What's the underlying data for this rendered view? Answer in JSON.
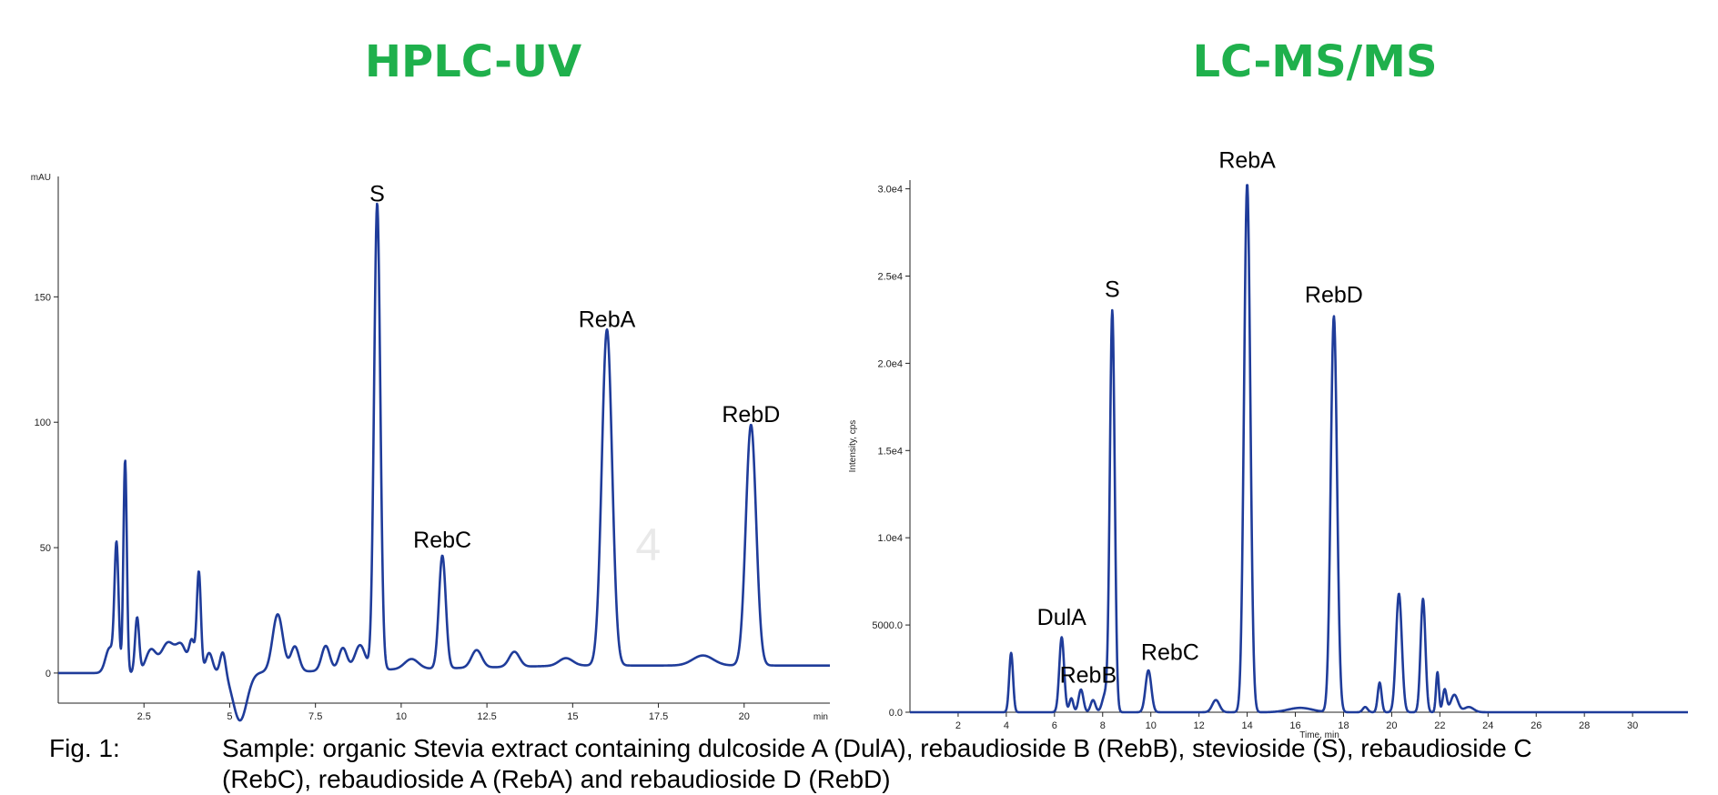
{
  "panels": {
    "left_title": "HPLC-UV",
    "right_title": "LC-MS/MS"
  },
  "caption": {
    "label": "Fig. 1:",
    "line1": "Sample: organic Stevia extract containing  dulcoside A (DulA), rebaudioside B (RebB), stevioside (S), rebaudioside C",
    "line2": "(RebC), rebaudioside A (RebA) and rebaudioside D (RebD)"
  },
  "chart_data": [
    {
      "type": "line",
      "title": "HPLC-UV",
      "ylabel": "mAU",
      "xlabel": "min",
      "xlim": [
        0,
        22.5
      ],
      "ylim": [
        -12,
        198
      ],
      "x_ticks": [
        2.5,
        5,
        7.5,
        10,
        12.5,
        15,
        17.5,
        20
      ],
      "x_tick_labels": [
        "2.5",
        "5",
        "7.5",
        "10",
        "12.5",
        "15",
        "17.5",
        "20"
      ],
      "y_ticks": [
        0,
        50,
        100,
        150
      ],
      "y_tick_labels": [
        "0",
        "50",
        "100",
        "150"
      ],
      "baseline": 0,
      "baseline_end": 3,
      "color": "#1f3c9a",
      "peaks": [
        {
          "x": 1.5,
          "h": 10,
          "w": 0.12
        },
        {
          "x": 1.7,
          "h": 50,
          "w": 0.06
        },
        {
          "x": 1.95,
          "h": 85,
          "w": 0.05
        },
        {
          "x": 2.3,
          "h": 22,
          "w": 0.06
        },
        {
          "x": 2.7,
          "h": 9,
          "w": 0.15
        },
        {
          "x": 3.2,
          "h": 12,
          "w": 0.2
        },
        {
          "x": 3.6,
          "h": 10,
          "w": 0.15
        },
        {
          "x": 3.9,
          "h": 12,
          "w": 0.08
        },
        {
          "x": 4.1,
          "h": 40,
          "w": 0.06
        },
        {
          "x": 4.4,
          "h": 8,
          "w": 0.1
        },
        {
          "x": 4.8,
          "h": 9,
          "w": 0.08
        },
        {
          "x": 5.3,
          "h": -19,
          "w": 0.2
        },
        {
          "x": 6.4,
          "h": 23,
          "w": 0.15
        },
        {
          "x": 6.9,
          "h": 10,
          "w": 0.12
        },
        {
          "x": 7.8,
          "h": 10,
          "w": 0.12
        },
        {
          "x": 8.3,
          "h": 9,
          "w": 0.12
        },
        {
          "x": 8.8,
          "h": 10,
          "w": 0.15
        },
        {
          "x": 9.3,
          "h": 186,
          "w": 0.09
        },
        {
          "x": 10.3,
          "h": 4,
          "w": 0.2
        },
        {
          "x": 11.2,
          "h": 45,
          "w": 0.1
        },
        {
          "x": 12.2,
          "h": 7,
          "w": 0.15
        },
        {
          "x": 13.3,
          "h": 6,
          "w": 0.15
        },
        {
          "x": 14.8,
          "h": 3,
          "w": 0.2
        },
        {
          "x": 16.0,
          "h": 134,
          "w": 0.15
        },
        {
          "x": 18.8,
          "h": 4,
          "w": 0.3
        },
        {
          "x": 20.2,
          "h": 96,
          "w": 0.15
        }
      ],
      "annotations": [
        {
          "label": "S",
          "x": 9.3,
          "y": 188
        },
        {
          "label": "RebC",
          "x": 11.2,
          "y": 50
        },
        {
          "label": "RebA",
          "x": 16.0,
          "y": 138
        },
        {
          "label": "RebD",
          "x": 20.2,
          "y": 100
        }
      ],
      "watermark": "4"
    },
    {
      "type": "line",
      "title": "LC-MS/MS",
      "ylabel": "Intensity, cps",
      "xlabel": "Time, min",
      "xlim": [
        0,
        32.3
      ],
      "ylim": [
        0,
        30500
      ],
      "x_ticks": [
        2,
        4,
        6,
        8,
        10,
        12,
        14,
        16,
        18,
        20,
        22,
        24,
        26,
        28,
        30
      ],
      "x_tick_labels": [
        "2",
        "4",
        "6",
        "8",
        "10",
        "12",
        "14",
        "16",
        "18",
        "20",
        "22",
        "24",
        "26",
        "28",
        "30"
      ],
      "y_ticks": [
        0,
        5000,
        10000,
        15000,
        20000,
        25000,
        30000
      ],
      "y_tick_labels": [
        "0.0",
        "5000.0",
        "1.0e4",
        "1.5e4",
        "2.0e4",
        "2.5e4",
        "3.0e4"
      ],
      "baseline": 0,
      "baseline_end": 0,
      "color": "#1f3c9a",
      "peaks": [
        {
          "x": 4.2,
          "h": 3400,
          "w": 0.08
        },
        {
          "x": 6.3,
          "h": 4300,
          "w": 0.1
        },
        {
          "x": 6.7,
          "h": 800,
          "w": 0.08
        },
        {
          "x": 7.1,
          "h": 1300,
          "w": 0.1
        },
        {
          "x": 7.6,
          "h": 700,
          "w": 0.1
        },
        {
          "x": 8.1,
          "h": 1000,
          "w": 0.12
        },
        {
          "x": 8.4,
          "h": 23000,
          "w": 0.1
        },
        {
          "x": 9.9,
          "h": 2400,
          "w": 0.12
        },
        {
          "x": 12.7,
          "h": 700,
          "w": 0.15
        },
        {
          "x": 14.0,
          "h": 30300,
          "w": 0.13
        },
        {
          "x": 16.2,
          "h": 250,
          "w": 0.5
        },
        {
          "x": 17.6,
          "h": 22700,
          "w": 0.13
        },
        {
          "x": 18.9,
          "h": 300,
          "w": 0.1
        },
        {
          "x": 19.5,
          "h": 1700,
          "w": 0.08
        },
        {
          "x": 20.3,
          "h": 6800,
          "w": 0.12
        },
        {
          "x": 21.3,
          "h": 6500,
          "w": 0.1
        },
        {
          "x": 21.9,
          "h": 2300,
          "w": 0.06
        },
        {
          "x": 22.2,
          "h": 1300,
          "w": 0.08
        },
        {
          "x": 22.6,
          "h": 1000,
          "w": 0.15
        },
        {
          "x": 23.2,
          "h": 300,
          "w": 0.2
        }
      ],
      "annotations": [
        {
          "label": "RebA",
          "x": 14.0,
          "y": 31200
        },
        {
          "label": "S",
          "x": 8.4,
          "y": 23800
        },
        {
          "label": "RebD",
          "x": 17.6,
          "y": 23500
        },
        {
          "label": "DulA",
          "x": 6.3,
          "y": 5000
        },
        {
          "label": "RebB",
          "x": 7.4,
          "y": 1700
        },
        {
          "label": "RebC",
          "x": 10.8,
          "y": 3000
        }
      ]
    }
  ]
}
